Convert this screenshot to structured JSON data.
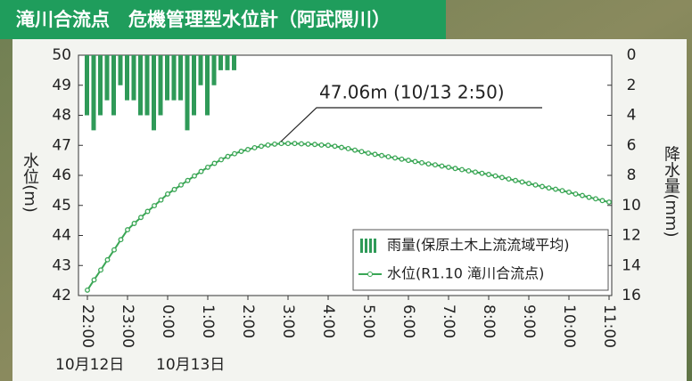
{
  "chart_data": {
    "type": "bar-line",
    "title": "滝川合流点　危機管理型水位計（阿武隈川）",
    "ylabel": "水位(m)",
    "y2label": "降水量(mm)",
    "annotation": "47.06m (10/13 2:50)",
    "date_labels": [
      "10月12日",
      "10月13日"
    ],
    "categories": [
      "22:00",
      null,
      null,
      null,
      null,
      null,
      "23:00",
      null,
      null,
      null,
      null,
      null,
      "0:00",
      null,
      null,
      null,
      null,
      null,
      "1:00",
      null,
      null,
      null,
      null,
      null,
      "2:00",
      null,
      null,
      null,
      null,
      null,
      "3:00",
      null,
      null,
      null,
      null,
      null,
      "4:00",
      null,
      null,
      null,
      null,
      null,
      "5:00",
      null,
      null,
      null,
      null,
      null,
      "6:00",
      null,
      null,
      null,
      null,
      null,
      "7:00",
      null,
      null,
      null,
      null,
      null,
      "8:00",
      null,
      null,
      null,
      null,
      null,
      "9:00",
      null,
      null,
      null,
      null,
      null,
      "10:00",
      null,
      null,
      null,
      null,
      null,
      "11:00"
    ],
    "ylim": [
      42,
      50
    ],
    "yticks": [
      42,
      43,
      44,
      45,
      46,
      47,
      48,
      49,
      50
    ],
    "y2lim": [
      16,
      0
    ],
    "y2ticks": [
      0,
      2,
      4,
      6,
      8,
      10,
      12,
      14,
      16
    ],
    "legend": "bottom-right",
    "series": [
      {
        "name": "雨量(保原土木上流流域平均)",
        "type": "bar",
        "axis": "y2",
        "color": "#2f9a58",
        "values": [
          4,
          5,
          4,
          3,
          4,
          2,
          3,
          3,
          4,
          4,
          5,
          4,
          3,
          3,
          3,
          5,
          4,
          2,
          4,
          2,
          1,
          1,
          1,
          0,
          0,
          0,
          0,
          0,
          0,
          0,
          0,
          0,
          0,
          0,
          0,
          0,
          0,
          0,
          0,
          0,
          0,
          0,
          0,
          0,
          0,
          0,
          0,
          0,
          0,
          0,
          0,
          0,
          0,
          0,
          0,
          0,
          0,
          0,
          0,
          0,
          0,
          0,
          0,
          0,
          0,
          0,
          0,
          0,
          0,
          0,
          0,
          0,
          0,
          0,
          0,
          0,
          0,
          0,
          0
        ]
      },
      {
        "name": "水位(R1.10 滝川合流点)",
        "type": "line",
        "color": "#3aa655",
        "values": [
          42.18,
          42.52,
          42.85,
          43.19,
          43.52,
          43.86,
          44.19,
          44.4,
          44.6,
          44.8,
          44.99,
          45.18,
          45.38,
          45.53,
          45.68,
          45.83,
          45.98,
          46.13,
          46.27,
          46.4,
          46.52,
          46.63,
          46.72,
          46.8,
          46.86,
          46.92,
          46.97,
          47.01,
          47.04,
          47.06,
          47.06,
          47.06,
          47.05,
          47.04,
          47.03,
          47.01,
          47.0,
          46.97,
          46.93,
          46.89,
          46.84,
          46.79,
          46.74,
          46.7,
          46.66,
          46.62,
          46.58,
          46.54,
          46.5,
          46.46,
          46.42,
          46.38,
          46.35,
          46.31,
          46.27,
          46.23,
          46.19,
          46.15,
          46.11,
          46.07,
          46.03,
          45.98,
          45.93,
          45.88,
          45.83,
          45.78,
          45.73,
          45.68,
          45.63,
          45.58,
          45.54,
          45.49,
          45.44,
          45.38,
          45.33,
          45.27,
          45.22,
          45.16,
          45.11
        ]
      }
    ]
  }
}
